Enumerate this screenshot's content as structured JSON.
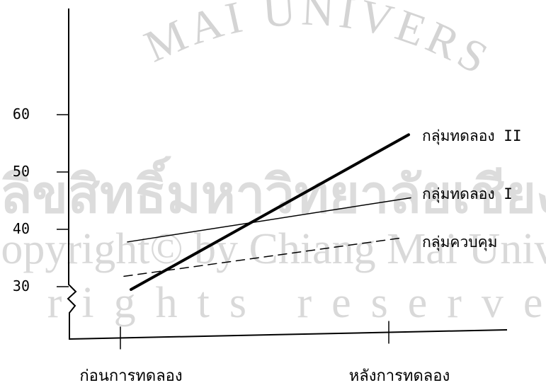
{
  "watermark": {
    "arc_text": "MAI UNIVERS",
    "line1": "ลิขสิทธิ์มหาวิทยาลัยเชียงใหม่",
    "line2": "Copyright© by Chiang Mai University",
    "line3": "All rights reserved",
    "color": "#cfcfcf"
  },
  "chart_data": {
    "type": "line",
    "title": "",
    "xlabel": "",
    "ylabel": "",
    "categories": [
      "ก่อนการทดลอง",
      "หลังการทดลอง"
    ],
    "y_ticks": [
      "30",
      "40",
      "50",
      "60"
    ],
    "ylim": [
      20,
      64
    ],
    "axis_break": true,
    "grid": false,
    "legend": "inline-right",
    "series": [
      {
        "name": "กลุ่มทดลอง II",
        "values": [
          29.5,
          56.5
        ],
        "style": "solid-thick",
        "color": "#000000"
      },
      {
        "name": "กลุ่มทดลอง I",
        "values": [
          37.8,
          45.5
        ],
        "style": "solid-thin",
        "color": "#000000"
      },
      {
        "name": "กลุ่มควบคุม",
        "values": [
          31.8,
          38.5
        ],
        "style": "dashed",
        "color": "#000000"
      }
    ]
  }
}
